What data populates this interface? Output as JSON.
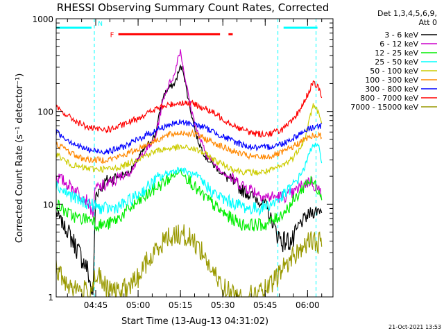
{
  "chart_data": {
    "type": "line",
    "title": "RHESSI Observing Summary Count Rates, Corrected",
    "xlabel": "Start Time (13-Aug-13 04:31:02)",
    "ylabel": "Corrected Count Rate (s⁻¹ detector⁻¹)",
    "y_scale": "log",
    "ylim": [
      1,
      1000
    ],
    "y_ticks": [
      {
        "value": 1,
        "label": "1"
      },
      {
        "value": 10,
        "label": "10"
      },
      {
        "value": 100,
        "label": "100"
      },
      {
        "value": 1000,
        "label": "1000"
      }
    ],
    "x_range_minutes": [
      0,
      98
    ],
    "x_ticks": [
      {
        "t": 14,
        "label": "04:45"
      },
      {
        "t": 29,
        "label": "05:00"
      },
      {
        "t": 44,
        "label": "05:15"
      },
      {
        "t": 59,
        "label": "05:30"
      },
      {
        "t": 74,
        "label": "05:45"
      },
      {
        "t": 89,
        "label": "06:00"
      }
    ],
    "x_minor_step": 5,
    "legend_header": [
      "Det 1,3,4,5,6,9,",
      "Att 0"
    ],
    "legend_placement": "right",
    "series": [
      {
        "name": "3 - 6 keV",
        "color": "#000000",
        "points": [
          [
            0,
            8
          ],
          [
            6,
            4
          ],
          [
            11,
            2
          ],
          [
            13,
            1
          ],
          [
            14,
            13
          ],
          [
            18,
            18
          ],
          [
            22,
            20
          ],
          [
            26,
            22
          ],
          [
            30,
            35
          ],
          [
            35,
            55
          ],
          [
            38,
            150
          ],
          [
            40,
            180
          ],
          [
            42,
            200
          ],
          [
            43,
            250
          ],
          [
            44,
            300
          ],
          [
            45,
            280
          ],
          [
            46,
            180
          ],
          [
            48,
            90
          ],
          [
            50,
            50
          ],
          [
            53,
            32
          ],
          [
            57,
            24
          ],
          [
            62,
            18
          ],
          [
            66,
            14
          ],
          [
            70,
            12
          ],
          [
            74,
            10
          ],
          [
            78,
            5
          ],
          [
            80,
            4
          ],
          [
            84,
            4
          ],
          [
            86,
            6
          ],
          [
            90,
            8
          ],
          [
            94,
            9
          ]
        ]
      },
      {
        "name": "6 - 12 keV",
        "color": "#cc00cc",
        "points": [
          [
            0,
            20
          ],
          [
            6,
            15
          ],
          [
            11,
            11
          ],
          [
            13,
            8
          ],
          [
            14,
            15
          ],
          [
            18,
            16
          ],
          [
            22,
            19
          ],
          [
            26,
            22
          ],
          [
            30,
            33
          ],
          [
            35,
            50
          ],
          [
            38,
            140
          ],
          [
            40,
            200
          ],
          [
            42,
            250
          ],
          [
            43,
            380
          ],
          [
            44,
            450
          ],
          [
            45,
            300
          ],
          [
            46,
            200
          ],
          [
            48,
            100
          ],
          [
            50,
            60
          ],
          [
            53,
            35
          ],
          [
            57,
            25
          ],
          [
            62,
            19
          ],
          [
            66,
            16
          ],
          [
            70,
            14
          ],
          [
            74,
            12
          ],
          [
            78,
            12
          ],
          [
            80,
            12
          ],
          [
            84,
            13
          ],
          [
            86,
            15
          ],
          [
            90,
            18
          ],
          [
            94,
            13
          ]
        ]
      },
      {
        "name": "12 - 25 keV",
        "color": "#00ee00",
        "points": [
          [
            0,
            10
          ],
          [
            4,
            8
          ],
          [
            8,
            7
          ],
          [
            13,
            7
          ],
          [
            14,
            6
          ],
          [
            18,
            6
          ],
          [
            22,
            7
          ],
          [
            26,
            9
          ],
          [
            30,
            11
          ],
          [
            34,
            14
          ],
          [
            38,
            17
          ],
          [
            40,
            19
          ],
          [
            42,
            21
          ],
          [
            44,
            23
          ],
          [
            46,
            20
          ],
          [
            48,
            17
          ],
          [
            50,
            14
          ],
          [
            54,
            11
          ],
          [
            58,
            8.5
          ],
          [
            62,
            7
          ],
          [
            66,
            6
          ],
          [
            70,
            6
          ],
          [
            74,
            6
          ],
          [
            78,
            7
          ],
          [
            82,
            9
          ],
          [
            86,
            13
          ],
          [
            89,
            18
          ],
          [
            91,
            17
          ],
          [
            94,
            13
          ]
        ]
      },
      {
        "name": "25 - 50 keV",
        "color": "#00ffff",
        "points": [
          [
            0,
            16
          ],
          [
            4,
            13
          ],
          [
            8,
            11
          ],
          [
            12,
            10
          ],
          [
            16,
            9
          ],
          [
            20,
            9
          ],
          [
            24,
            10
          ],
          [
            28,
            12
          ],
          [
            32,
            15
          ],
          [
            36,
            19
          ],
          [
            40,
            22
          ],
          [
            44,
            24
          ],
          [
            48,
            21
          ],
          [
            52,
            17
          ],
          [
            56,
            13
          ],
          [
            60,
            11
          ],
          [
            64,
            10
          ],
          [
            68,
            9
          ],
          [
            72,
            9
          ],
          [
            76,
            10
          ],
          [
            80,
            12
          ],
          [
            84,
            16
          ],
          [
            88,
            25
          ],
          [
            90,
            38
          ],
          [
            91,
            45
          ],
          [
            93,
            40
          ],
          [
            94,
            30
          ]
        ]
      },
      {
        "name": "50 - 100 keV",
        "color": "#cccc00",
        "points": [
          [
            0,
            35
          ],
          [
            4,
            28
          ],
          [
            8,
            25
          ],
          [
            12,
            24
          ],
          [
            16,
            24
          ],
          [
            20,
            24
          ],
          [
            24,
            26
          ],
          [
            28,
            30
          ],
          [
            32,
            34
          ],
          [
            36,
            38
          ],
          [
            40,
            40
          ],
          [
            44,
            41
          ],
          [
            48,
            40
          ],
          [
            52,
            36
          ],
          [
            56,
            30
          ],
          [
            60,
            26
          ],
          [
            64,
            23
          ],
          [
            68,
            22
          ],
          [
            72,
            22
          ],
          [
            76,
            23
          ],
          [
            80,
            26
          ],
          [
            84,
            32
          ],
          [
            88,
            50
          ],
          [
            90,
            90
          ],
          [
            91,
            120
          ],
          [
            93,
            95
          ],
          [
            94,
            70
          ]
        ]
      },
      {
        "name": "100 - 300 keV",
        "color": "#ff8800",
        "points": [
          [
            0,
            45
          ],
          [
            4,
            38
          ],
          [
            8,
            32
          ],
          [
            12,
            30
          ],
          [
            16,
            30
          ],
          [
            20,
            31
          ],
          [
            24,
            34
          ],
          [
            28,
            38
          ],
          [
            32,
            44
          ],
          [
            36,
            50
          ],
          [
            40,
            56
          ],
          [
            44,
            59
          ],
          [
            48,
            58
          ],
          [
            52,
            52
          ],
          [
            56,
            46
          ],
          [
            60,
            40
          ],
          [
            64,
            36
          ],
          [
            68,
            33
          ],
          [
            72,
            32
          ],
          [
            76,
            33
          ],
          [
            80,
            36
          ],
          [
            84,
            42
          ],
          [
            88,
            50
          ],
          [
            91,
            55
          ],
          [
            94,
            55
          ]
        ]
      },
      {
        "name": "300 - 800 keV",
        "color": "#0000ff",
        "points": [
          [
            0,
            60
          ],
          [
            4,
            50
          ],
          [
            8,
            42
          ],
          [
            12,
            38
          ],
          [
            16,
            37
          ],
          [
            20,
            38
          ],
          [
            24,
            42
          ],
          [
            28,
            48
          ],
          [
            32,
            56
          ],
          [
            36,
            64
          ],
          [
            40,
            72
          ],
          [
            44,
            76
          ],
          [
            48,
            74
          ],
          [
            52,
            68
          ],
          [
            56,
            60
          ],
          [
            60,
            52
          ],
          [
            64,
            46
          ],
          [
            68,
            42
          ],
          [
            72,
            40
          ],
          [
            76,
            42
          ],
          [
            80,
            45
          ],
          [
            84,
            52
          ],
          [
            88,
            62
          ],
          [
            91,
            68
          ],
          [
            94,
            70
          ]
        ]
      },
      {
        "name": "800 - 7000 keV",
        "color": "#ff0000",
        "points": [
          [
            0,
            110
          ],
          [
            4,
            90
          ],
          [
            8,
            75
          ],
          [
            12,
            66
          ],
          [
            16,
            63
          ],
          [
            20,
            65
          ],
          [
            24,
            72
          ],
          [
            28,
            82
          ],
          [
            32,
            95
          ],
          [
            36,
            108
          ],
          [
            40,
            118
          ],
          [
            44,
            125
          ],
          [
            48,
            122
          ],
          [
            52,
            110
          ],
          [
            56,
            95
          ],
          [
            60,
            80
          ],
          [
            64,
            68
          ],
          [
            68,
            60
          ],
          [
            72,
            57
          ],
          [
            76,
            58
          ],
          [
            80,
            64
          ],
          [
            84,
            80
          ],
          [
            88,
            130
          ],
          [
            90,
            180
          ],
          [
            91,
            200
          ],
          [
            93,
            180
          ],
          [
            94,
            140
          ]
        ]
      },
      {
        "name": "7000 - 15000 keV",
        "color": "#999900",
        "points": [
          [
            0,
            2
          ],
          [
            2,
            1.6
          ],
          [
            4,
            1.4
          ],
          [
            8,
            1.2
          ],
          [
            12,
            1.1
          ],
          [
            14,
            1.8
          ],
          [
            18,
            1.2
          ],
          [
            22,
            1.1
          ],
          [
            26,
            1.3
          ],
          [
            28,
            1.5
          ],
          [
            30,
            1.8
          ],
          [
            32,
            2.4
          ],
          [
            34,
            2.6
          ],
          [
            36,
            3.6
          ],
          [
            38,
            4
          ],
          [
            40,
            4.5
          ],
          [
            44,
            4.8
          ],
          [
            48,
            4.2
          ],
          [
            50,
            3.6
          ],
          [
            52,
            3
          ],
          [
            54,
            2.2
          ],
          [
            56,
            1.7
          ],
          [
            58,
            1.4
          ],
          [
            60,
            1.2
          ],
          [
            64,
            1
          ],
          [
            68,
            1
          ],
          [
            72,
            1.1
          ],
          [
            76,
            1.3
          ],
          [
            80,
            2
          ],
          [
            84,
            2.8
          ],
          [
            88,
            3.6
          ],
          [
            90,
            4
          ],
          [
            94,
            3.8
          ]
        ]
      }
    ],
    "attenuator_bars": [
      {
        "color": "#00ffff",
        "t_start": 0,
        "t_end": 12.5,
        "level": 800
      },
      {
        "color": "#00ffff",
        "t_start": 80.5,
        "t_end": 92.5,
        "level": 800
      }
    ],
    "flare_flag": {
      "label": "F",
      "color": "#ff0000",
      "segments": [
        [
          22,
          58
        ],
        [
          61,
          62.5
        ]
      ],
      "level": 680
    },
    "night_flag": {
      "label": "N",
      "color": "#00ffff",
      "t": 14.8,
      "level": 800
    },
    "night_lines": [
      13.5,
      78.5,
      92
    ],
    "timestamp": "21-Oct-2021 13:53"
  }
}
